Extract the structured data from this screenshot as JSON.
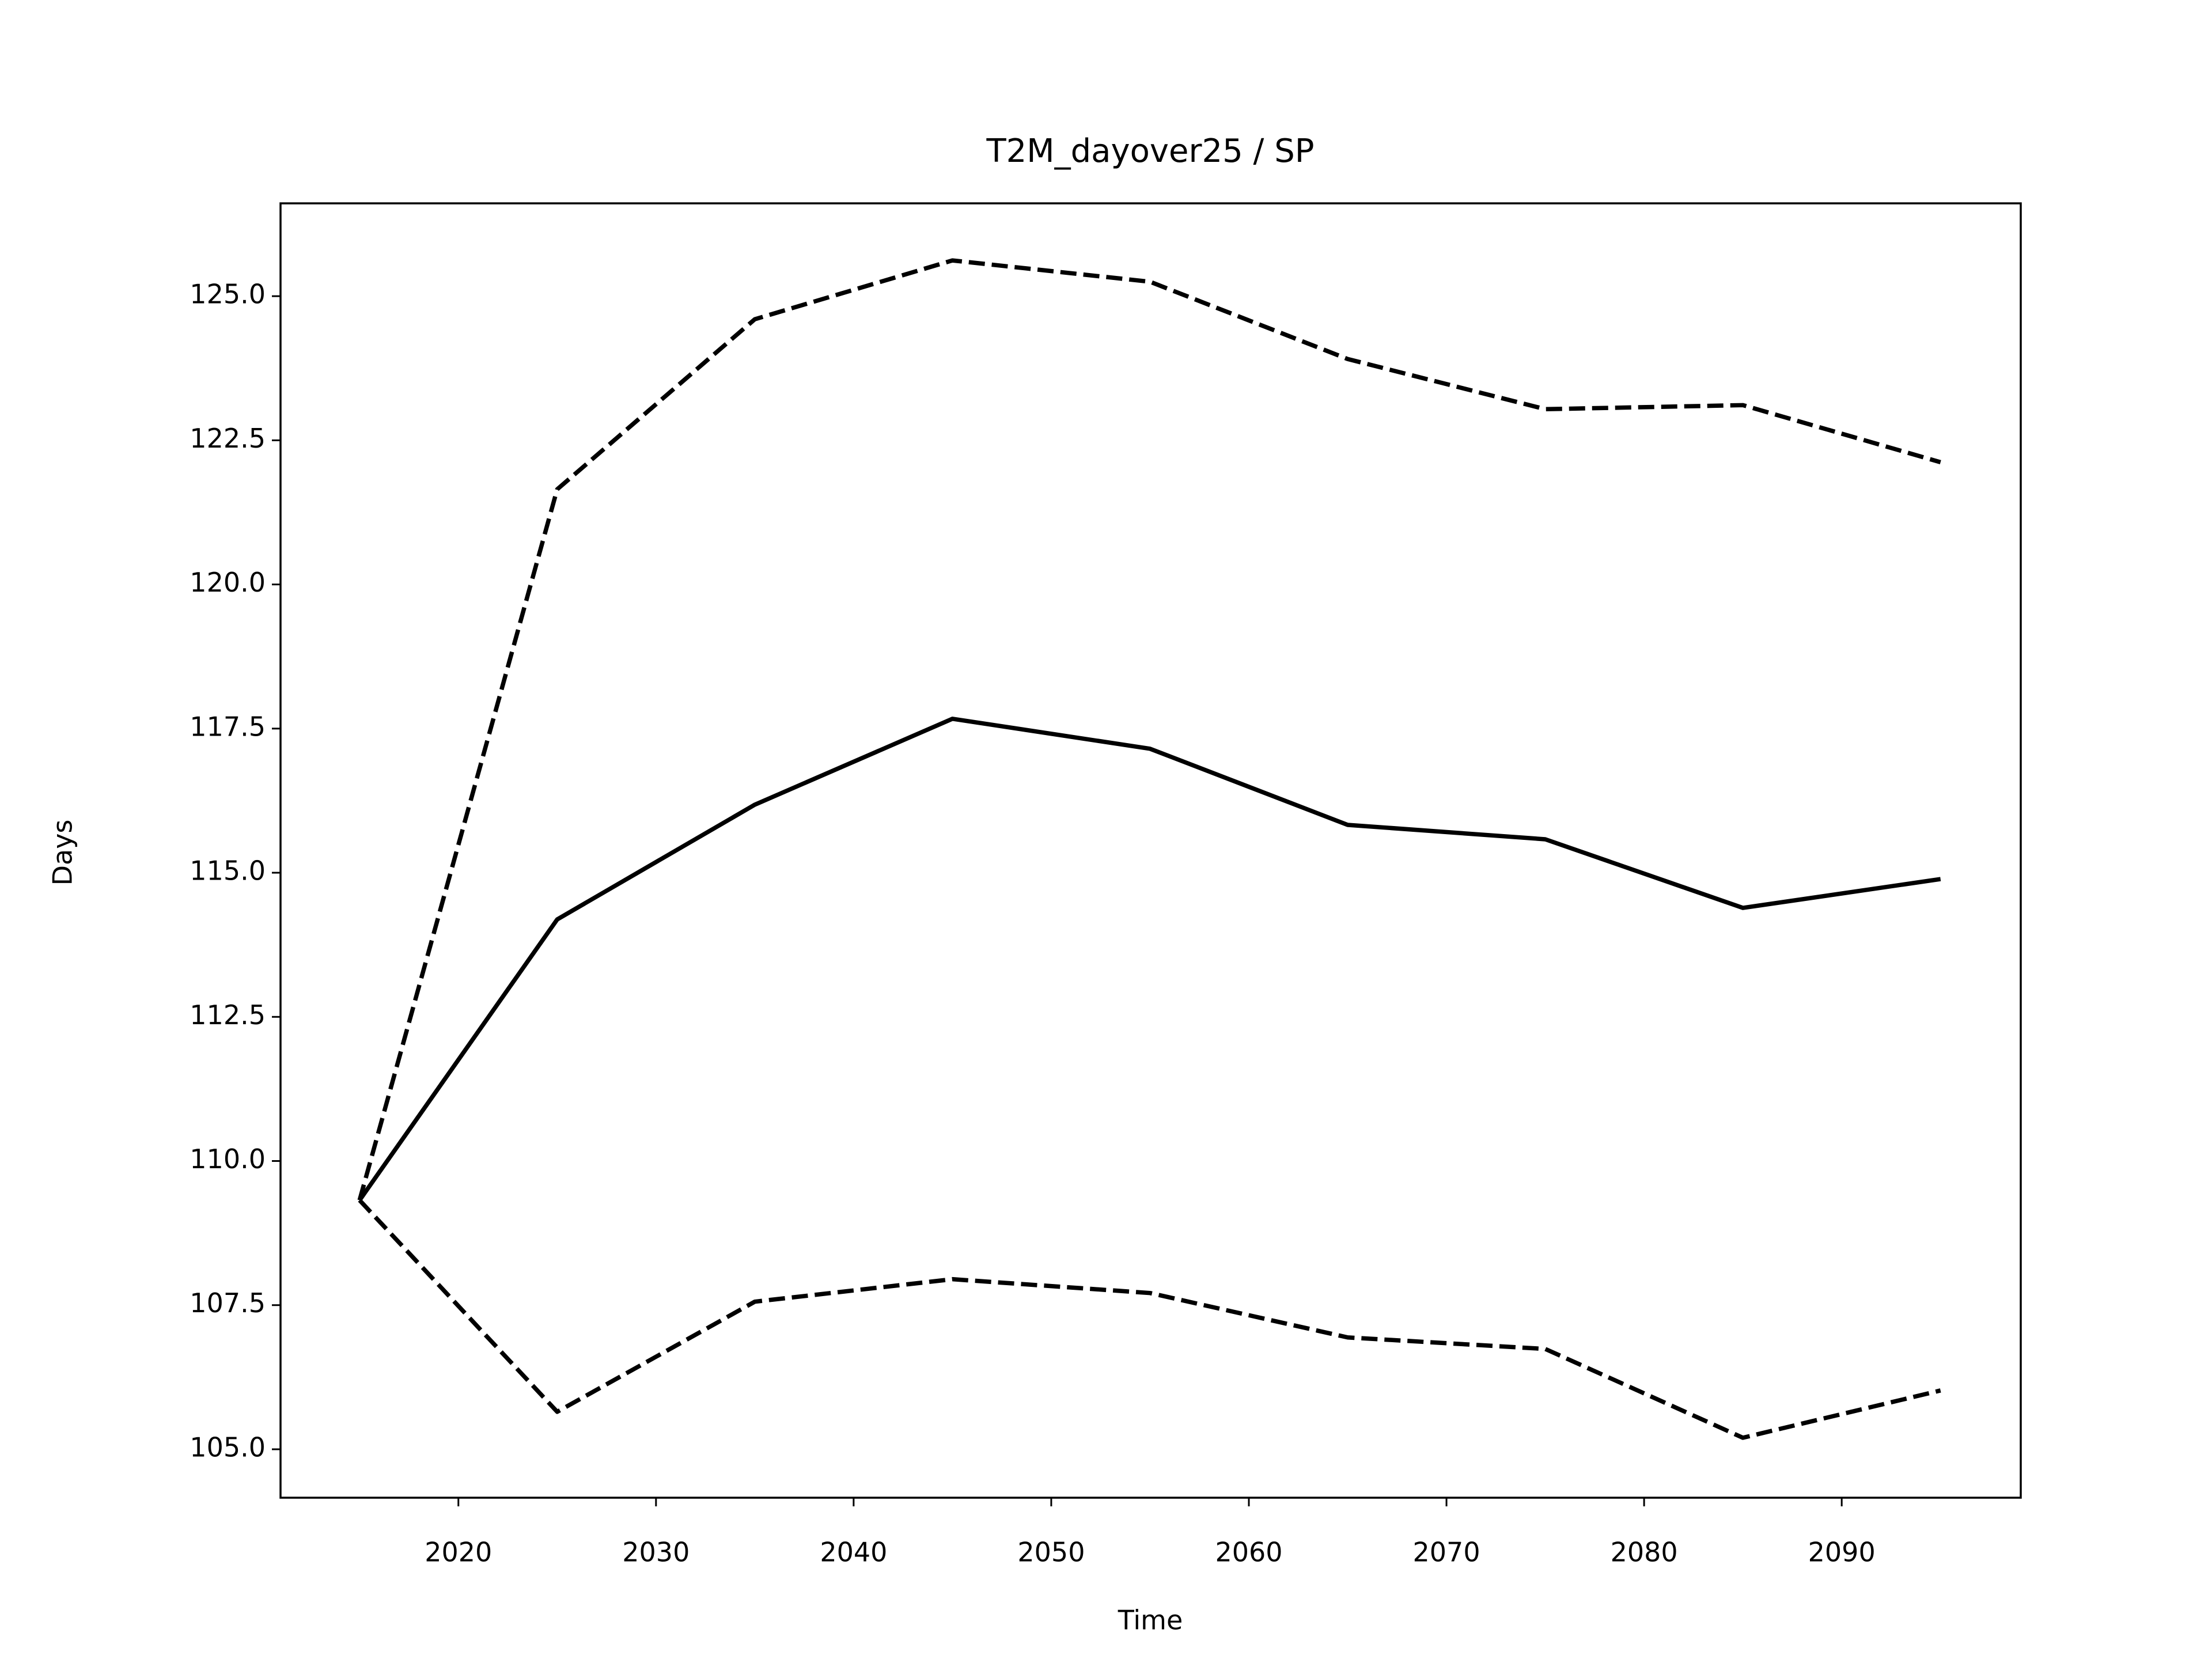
{
  "chart_data": {
    "type": "line",
    "title": "T2M_dayover25 / SP",
    "x_label": "Time",
    "y_label": "Days",
    "x": [
      2015,
      2025,
      2035,
      2045,
      2055,
      2065,
      2075,
      2085,
      2095
    ],
    "series": [
      {
        "color": "#000000",
        "linestyle": "solid",
        "values": [
          109.32,
          114.19,
          116.18,
          117.67,
          117.15,
          115.83,
          115.58,
          114.39,
          114.89
        ]
      },
      {
        "color": "#000000",
        "linestyle": "dashed",
        "values": [
          109.32,
          121.65,
          124.6,
          125.62,
          125.25,
          123.91,
          123.04,
          123.11,
          122.12
        ]
      },
      {
        "color": "#000000",
        "linestyle": "dashed",
        "values": [
          109.32,
          105.65,
          107.56,
          107.95,
          107.71,
          106.94,
          106.74,
          105.2,
          106.02
        ]
      }
    ],
    "xlim": [
      2011,
      2099.06
    ],
    "ylim": [
      104.16,
      126.61
    ],
    "xticks": [
      2020,
      2030,
      2040,
      2050,
      2060,
      2070,
      2080,
      2090
    ],
    "yticks": [
      {
        "value": 105,
        "label": "105.0"
      },
      {
        "value": 107.5,
        "label": "107.5"
      },
      {
        "value": 110,
        "label": "110.0"
      },
      {
        "value": 112.5,
        "label": "112.5"
      },
      {
        "value": 115,
        "label": "115.0"
      },
      {
        "value": 117.5,
        "label": "117.5"
      },
      {
        "value": 120,
        "label": "120.0"
      },
      {
        "value": 122.5,
        "label": "122.5"
      },
      {
        "value": 125,
        "label": "125.0"
      }
    ],
    "grid": false
  }
}
